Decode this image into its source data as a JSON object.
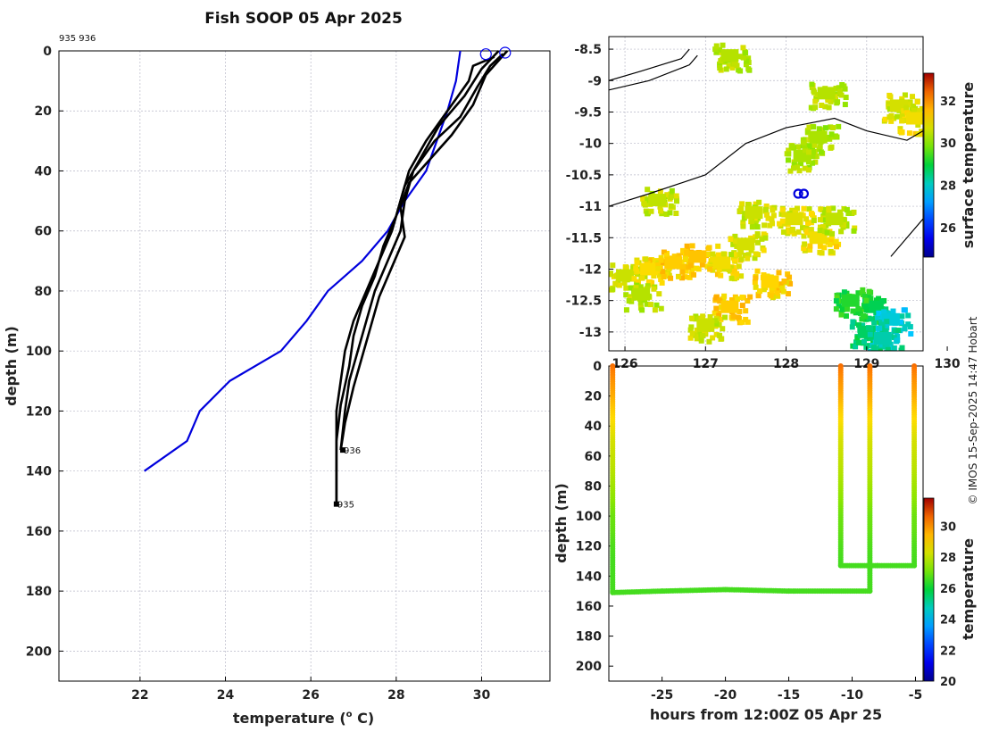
{
  "title": "Fish SOOP 05 Apr 2025",
  "credit": "© IMOS 15-Sep-2025 14:47 Hobart",
  "chart_data": [
    {
      "type": "line",
      "name": "temperature-profiles",
      "xlabel": "temperature (° C)",
      "xlabel_main": "temperature (",
      "xlabel_sup": "o",
      "xlabel_tail": " C)",
      "ylabel": "depth (m)",
      "xlim": [
        20.1,
        31.6
      ],
      "ylim": [
        210,
        0
      ],
      "xticks": [
        22,
        24,
        26,
        28,
        30
      ],
      "yticks": [
        0,
        20,
        40,
        60,
        80,
        100,
        120,
        140,
        160,
        180,
        200
      ],
      "top_label": "935 936",
      "climatology": {
        "name": "climatology",
        "color": "#0000dd",
        "x": [
          29.5,
          29.4,
          29.2,
          28.7,
          28.2,
          27.8,
          27.2,
          26.4,
          25.9,
          25.3,
          24.1,
          23.4,
          23.1,
          22.1
        ],
        "y": [
          0,
          10,
          20,
          40,
          50,
          60,
          70,
          80,
          90,
          100,
          110,
          120,
          130,
          140
        ]
      },
      "profiles": [
        {
          "name": "935-down",
          "x": [
            30.3,
            29.8,
            29.7,
            29.2,
            28.7,
            28.3,
            28.1,
            27.9,
            27.6,
            27.3,
            27.0,
            26.8,
            26.7,
            26.6,
            26.6,
            26.6
          ],
          "y": [
            2,
            5,
            10,
            20,
            30,
            40,
            50,
            60,
            70,
            80,
            90,
            100,
            110,
            120,
            140,
            151
          ]
        },
        {
          "name": "935-up",
          "x": [
            30.4,
            30.0,
            29.6,
            29.0,
            28.6,
            28.2,
            28.0,
            27.7,
            27.5,
            27.2,
            27.0,
            26.9,
            26.7,
            26.6,
            26.6
          ],
          "y": [
            0,
            6,
            15,
            25,
            35,
            45,
            55,
            65,
            75,
            85,
            95,
            105,
            118,
            130,
            150
          ]
        },
        {
          "name": "936-down",
          "x": [
            30.5,
            30.2,
            29.9,
            29.5,
            28.9,
            28.4,
            28.2,
            28.1,
            27.8,
            27.5,
            27.3,
            27.1,
            26.9,
            26.8,
            26.7
          ],
          "y": [
            1,
            5,
            12,
            22,
            30,
            40,
            50,
            60,
            70,
            80,
            90,
            100,
            110,
            120,
            133
          ]
        },
        {
          "name": "936-up",
          "x": [
            30.6,
            30.1,
            29.8,
            29.3,
            28.8,
            28.3,
            28.1,
            28.2,
            27.9,
            27.6,
            27.4,
            27.2,
            27.0,
            26.8,
            26.7
          ],
          "y": [
            0,
            8,
            18,
            28,
            36,
            44,
            52,
            62,
            72,
            82,
            92,
            102,
            112,
            124,
            133
          ]
        }
      ],
      "surface_markers": [
        {
          "name": "935-surface",
          "x": 30.1,
          "y": 0.5
        },
        {
          "name": "936-surface",
          "x": 30.55,
          "y": 0
        }
      ],
      "end_labels": [
        {
          "text": "936",
          "x": 26.75,
          "y": 133
        },
        {
          "text": "935",
          "x": 26.6,
          "y": 151
        }
      ]
    },
    {
      "type": "heatmap",
      "name": "surface-temperature-map",
      "xlabel": "",
      "ylabel": "",
      "xlim": [
        125.8,
        129.7
      ],
      "ylim": [
        -13.3,
        -8.3
      ],
      "xticks": [
        126,
        127,
        128,
        129,
        130
      ],
      "xtick_labels": [
        "126",
        "127",
        "128",
        "129",
        "130"
      ],
      "yticks": [
        -8.5,
        -9,
        -9.5,
        -10,
        -10.5,
        -11,
        -11.5,
        -12,
        -12.5,
        -13
      ],
      "ytick_labels": [
        "-8.5",
        "-9",
        "-9.5",
        "-10",
        "-10.5",
        "-11",
        "-11.5",
        "-12",
        "-12.5",
        "-13"
      ],
      "colorbar": {
        "label": "surface temperature",
        "min": 24.6,
        "max": 33.3,
        "ticks": [
          "26",
          "28",
          "30",
          "32"
        ],
        "tick_values": [
          26,
          28,
          30,
          32
        ]
      },
      "coastline": [
        {
          "name": "timor-coast",
          "lon": [
            125.8,
            126.3,
            127.0,
            127.5,
            128.0,
            128.6,
            129.0,
            129.5,
            129.7
          ],
          "lat": [
            -11.0,
            -10.8,
            -10.5,
            -10.0,
            -9.75,
            -9.6,
            -9.8,
            -9.95,
            -9.8
          ]
        },
        {
          "name": "north-coast",
          "lon": [
            125.8,
            126.2,
            126.7,
            126.8
          ],
          "lat": [
            -9.0,
            -8.85,
            -8.65,
            -8.5
          ]
        },
        {
          "name": "north-coast-2",
          "lon": [
            125.8,
            126.3,
            126.8,
            126.9
          ],
          "lat": [
            -9.15,
            -9.0,
            -8.75,
            -8.6
          ]
        },
        {
          "name": "australia-coast",
          "lon": [
            129.3,
            129.5,
            129.7
          ],
          "lat": [
            -11.8,
            -11.5,
            -11.2
          ]
        }
      ],
      "ship_positions": [
        {
          "name": "935-position",
          "lon": 128.15,
          "lat": -10.8
        },
        {
          "name": "936-position",
          "lon": 128.22,
          "lat": -10.8
        }
      ],
      "sst_patches": [
        {
          "lon": 126.0,
          "lat": -12.1,
          "value": 30.6
        },
        {
          "lon": 126.3,
          "lat": -12.0,
          "value": 31.1
        },
        {
          "lon": 126.6,
          "lat": -11.9,
          "value": 31.3
        },
        {
          "lon": 126.9,
          "lat": -11.8,
          "value": 31.4
        },
        {
          "lon": 127.2,
          "lat": -11.9,
          "value": 31.0
        },
        {
          "lon": 127.5,
          "lat": -11.6,
          "value": 30.7
        },
        {
          "lon": 127.8,
          "lat": -12.2,
          "value": 31.2
        },
        {
          "lon": 128.1,
          "lat": -11.2,
          "value": 30.8
        },
        {
          "lon": 128.4,
          "lat": -11.5,
          "value": 31.0
        },
        {
          "lon": 128.6,
          "lat": -11.2,
          "value": 30.5
        },
        {
          "lon": 126.2,
          "lat": -12.4,
          "value": 30.4
        },
        {
          "lon": 127.3,
          "lat": -12.6,
          "value": 31.3
        },
        {
          "lon": 127.6,
          "lat": -11.1,
          "value": 30.6
        },
        {
          "lon": 128.2,
          "lat": -10.2,
          "value": 30.3
        },
        {
          "lon": 128.4,
          "lat": -9.9,
          "value": 30.3
        },
        {
          "lon": 129.4,
          "lat": -9.4,
          "value": 30.7
        },
        {
          "lon": 129.6,
          "lat": -9.6,
          "value": 31.0
        },
        {
          "lon": 128.5,
          "lat": -9.2,
          "value": 30.4
        },
        {
          "lon": 127.3,
          "lat": -8.6,
          "value": 30.4
        },
        {
          "lon": 126.4,
          "lat": -10.9,
          "value": 30.5
        },
        {
          "lon": 127.0,
          "lat": -12.9,
          "value": 30.6
        },
        {
          "lon": 129.1,
          "lat": -12.6,
          "value": 28.8
        },
        {
          "lon": 129.3,
          "lat": -12.8,
          "value": 27.9
        },
        {
          "lon": 129.0,
          "lat": -13.0,
          "value": 28.7
        },
        {
          "lon": 129.2,
          "lat": -13.1,
          "value": 28.2
        },
        {
          "lon": 128.8,
          "lat": -12.5,
          "value": 29.2
        }
      ]
    },
    {
      "type": "scatter",
      "name": "time-depth-section",
      "xlabel": "hours from 12:00Z 05 Apr 25",
      "ylabel": "depth (m)",
      "xlim": [
        -29.2,
        -4.4
      ],
      "ylim": [
        210,
        0
      ],
      "xticks": [
        -25,
        -20,
        -15,
        -10,
        -5
      ],
      "yticks": [
        0,
        20,
        40,
        60,
        80,
        100,
        120,
        140,
        160,
        180,
        200
      ],
      "colorbar": {
        "label": "temperature",
        "min": 20,
        "max": 31.8,
        "ticks": [
          "20",
          "22",
          "24",
          "26",
          "28",
          "30"
        ],
        "tick_values": [
          20,
          22,
          24,
          26,
          28,
          30
        ]
      },
      "tracks": [
        {
          "name": "drop-1",
          "x": [
            -28.9,
            -28.9
          ],
          "y": [
            0,
            150
          ]
        },
        {
          "name": "bottom-tow",
          "x": [
            -28.9,
            -25,
            -20,
            -15,
            -8.6
          ],
          "y": [
            151,
            150,
            149,
            150,
            150
          ]
        },
        {
          "name": "drop-2",
          "x": [
            -10.9,
            -10.9
          ],
          "y": [
            0,
            132
          ]
        },
        {
          "name": "bottom-tow-2",
          "x": [
            -10.9,
            -8.0,
            -5.1
          ],
          "y": [
            133,
            133,
            133
          ]
        },
        {
          "name": "drop-3",
          "x": [
            -8.6,
            -8.6
          ],
          "y": [
            0,
            150
          ]
        },
        {
          "name": "drop-4",
          "x": [
            -5.1,
            -5.1
          ],
          "y": [
            0,
            133
          ]
        }
      ],
      "profile_temperature": {
        "depth": [
          0,
          10,
          20,
          30,
          40,
          50,
          60,
          70,
          80,
          90,
          100,
          110,
          120,
          130,
          140,
          150
        ],
        "temp": [
          30.5,
          30.0,
          29.6,
          29.1,
          28.7,
          28.3,
          28.1,
          27.9,
          27.6,
          27.3,
          27.0,
          26.9,
          26.7,
          26.6,
          26.6,
          26.6
        ]
      }
    }
  ]
}
